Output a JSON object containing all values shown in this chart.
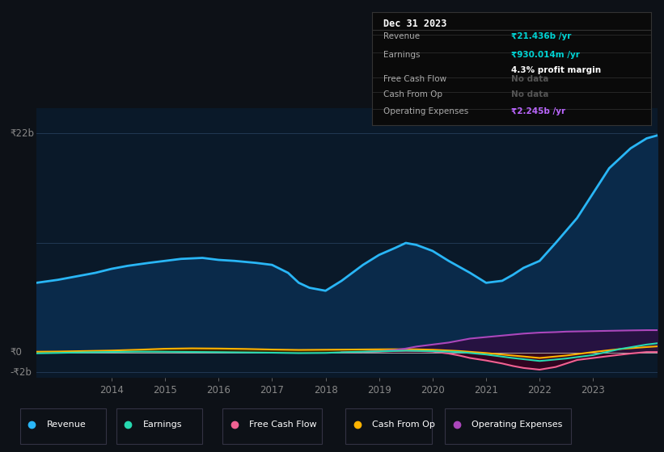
{
  "bg_color": "#0d1117",
  "plot_bg_color": "#0a1929",
  "grid_color": "#1e3a5f",
  "title_text": "Dec 31 2023",
  "ylim": [
    -2500000000.0,
    24500000000.0
  ],
  "xlim_start": 2012.6,
  "xlim_end": 2024.2,
  "xticks": [
    2014,
    2015,
    2016,
    2017,
    2018,
    2019,
    2020,
    2021,
    2022,
    2023
  ],
  "legend_items": [
    {
      "label": "Revenue",
      "color": "#29b6f6"
    },
    {
      "label": "Earnings",
      "color": "#26d9b0"
    },
    {
      "label": "Free Cash Flow",
      "color": "#f06292"
    },
    {
      "label": "Cash From Op",
      "color": "#ffb300"
    },
    {
      "label": "Operating Expenses",
      "color": "#ab47bc"
    }
  ],
  "revenue_x": [
    2012.6,
    2013.0,
    2013.3,
    2013.7,
    2014.0,
    2014.3,
    2014.7,
    2015.0,
    2015.3,
    2015.7,
    2016.0,
    2016.3,
    2016.7,
    2017.0,
    2017.3,
    2017.5,
    2017.7,
    2018.0,
    2018.3,
    2018.7,
    2019.0,
    2019.3,
    2019.5,
    2019.7,
    2020.0,
    2020.3,
    2020.7,
    2021.0,
    2021.3,
    2021.5,
    2021.7,
    2022.0,
    2022.3,
    2022.7,
    2023.0,
    2023.3,
    2023.7,
    2024.0,
    2024.2
  ],
  "revenue_y": [
    7000000000.0,
    7300000000.0,
    7600000000.0,
    8000000000.0,
    8400000000.0,
    8700000000.0,
    9000000000.0,
    9200000000.0,
    9400000000.0,
    9500000000.0,
    9300000000.0,
    9200000000.0,
    9000000000.0,
    8800000000.0,
    8000000000.0,
    7000000000.0,
    6500000000.0,
    6200000000.0,
    7200000000.0,
    8800000000.0,
    9800000000.0,
    10500000000.0,
    11000000000.0,
    10800000000.0,
    10200000000.0,
    9200000000.0,
    8000000000.0,
    7000000000.0,
    7200000000.0,
    7800000000.0,
    8500000000.0,
    9200000000.0,
    11000000000.0,
    13500000000.0,
    16000000000.0,
    18500000000.0,
    20500000000.0,
    21500000000.0,
    21800000000.0
  ],
  "earnings_x": [
    2012.6,
    2013.0,
    2013.5,
    2014.0,
    2014.5,
    2015.0,
    2015.5,
    2016.0,
    2016.5,
    2017.0,
    2017.5,
    2018.0,
    2018.5,
    2019.0,
    2019.5,
    2020.0,
    2020.5,
    2021.0,
    2021.5,
    2022.0,
    2022.5,
    2023.0,
    2023.5,
    2024.0,
    2024.2
  ],
  "earnings_y": [
    -80000000.0,
    -40000000.0,
    20000000.0,
    60000000.0,
    90000000.0,
    80000000.0,
    60000000.0,
    40000000.0,
    10000000.0,
    -20000000.0,
    -60000000.0,
    -40000000.0,
    60000000.0,
    120000000.0,
    180000000.0,
    140000000.0,
    50000000.0,
    -200000000.0,
    -550000000.0,
    -850000000.0,
    -600000000.0,
    -250000000.0,
    350000000.0,
    800000000.0,
    930000000.0
  ],
  "cash_from_op_x": [
    2012.6,
    2013.0,
    2013.5,
    2014.0,
    2014.5,
    2015.0,
    2015.5,
    2016.0,
    2016.5,
    2017.0,
    2017.5,
    2018.0,
    2018.5,
    2019.0,
    2019.3,
    2019.7,
    2020.0,
    2020.5,
    2021.0,
    2021.5,
    2022.0,
    2022.5,
    2023.0,
    2023.5,
    2024.0,
    2024.2
  ],
  "cash_from_op_y": [
    80000000.0,
    100000000.0,
    150000000.0,
    200000000.0,
    280000000.0,
    380000000.0,
    420000000.0,
    400000000.0,
    360000000.0,
    300000000.0,
    260000000.0,
    280000000.0,
    300000000.0,
    320000000.0,
    330000000.0,
    320000000.0,
    280000000.0,
    150000000.0,
    -50000000.0,
    -300000000.0,
    -550000000.0,
    -300000000.0,
    50000000.0,
    350000000.0,
    550000000.0,
    620000000.0
  ],
  "free_cash_flow_x": [
    2018.3,
    2018.7,
    2019.0,
    2019.3,
    2019.5,
    2019.7,
    2020.0,
    2020.3,
    2020.5,
    2020.7,
    2021.0,
    2021.3,
    2021.5,
    2021.7,
    2022.0,
    2022.3,
    2022.5,
    2022.7,
    2023.0,
    2023.3,
    2023.7,
    2024.0,
    2024.2
  ],
  "free_cash_flow_y": [
    20000000.0,
    60000000.0,
    100000000.0,
    150000000.0,
    180000000.0,
    160000000.0,
    100000000.0,
    -100000000.0,
    -300000000.0,
    -550000000.0,
    -800000000.0,
    -1100000000.0,
    -1350000000.0,
    -1550000000.0,
    -1720000000.0,
    -1450000000.0,
    -1100000000.0,
    -750000000.0,
    -550000000.0,
    -350000000.0,
    -100000000.0,
    50000000.0,
    50000000.0
  ],
  "operating_expenses_x": [
    2018.7,
    2019.0,
    2019.3,
    2019.5,
    2019.7,
    2020.0,
    2020.3,
    2020.5,
    2020.7,
    2021.0,
    2021.3,
    2021.5,
    2021.7,
    2022.0,
    2022.3,
    2022.5,
    2022.7,
    2023.0,
    2023.3,
    2023.7,
    2024.0,
    2024.2
  ],
  "operating_expenses_y": [
    50000000.0,
    120000000.0,
    250000000.0,
    400000000.0,
    600000000.0,
    800000000.0,
    1000000000.0,
    1200000000.0,
    1400000000.0,
    1550000000.0,
    1700000000.0,
    1800000000.0,
    1900000000.0,
    2000000000.0,
    2050000000.0,
    2100000000.0,
    2120000000.0,
    2150000000.0,
    2180000000.0,
    2220000000.0,
    2245000000.0,
    2245000000.0
  ]
}
